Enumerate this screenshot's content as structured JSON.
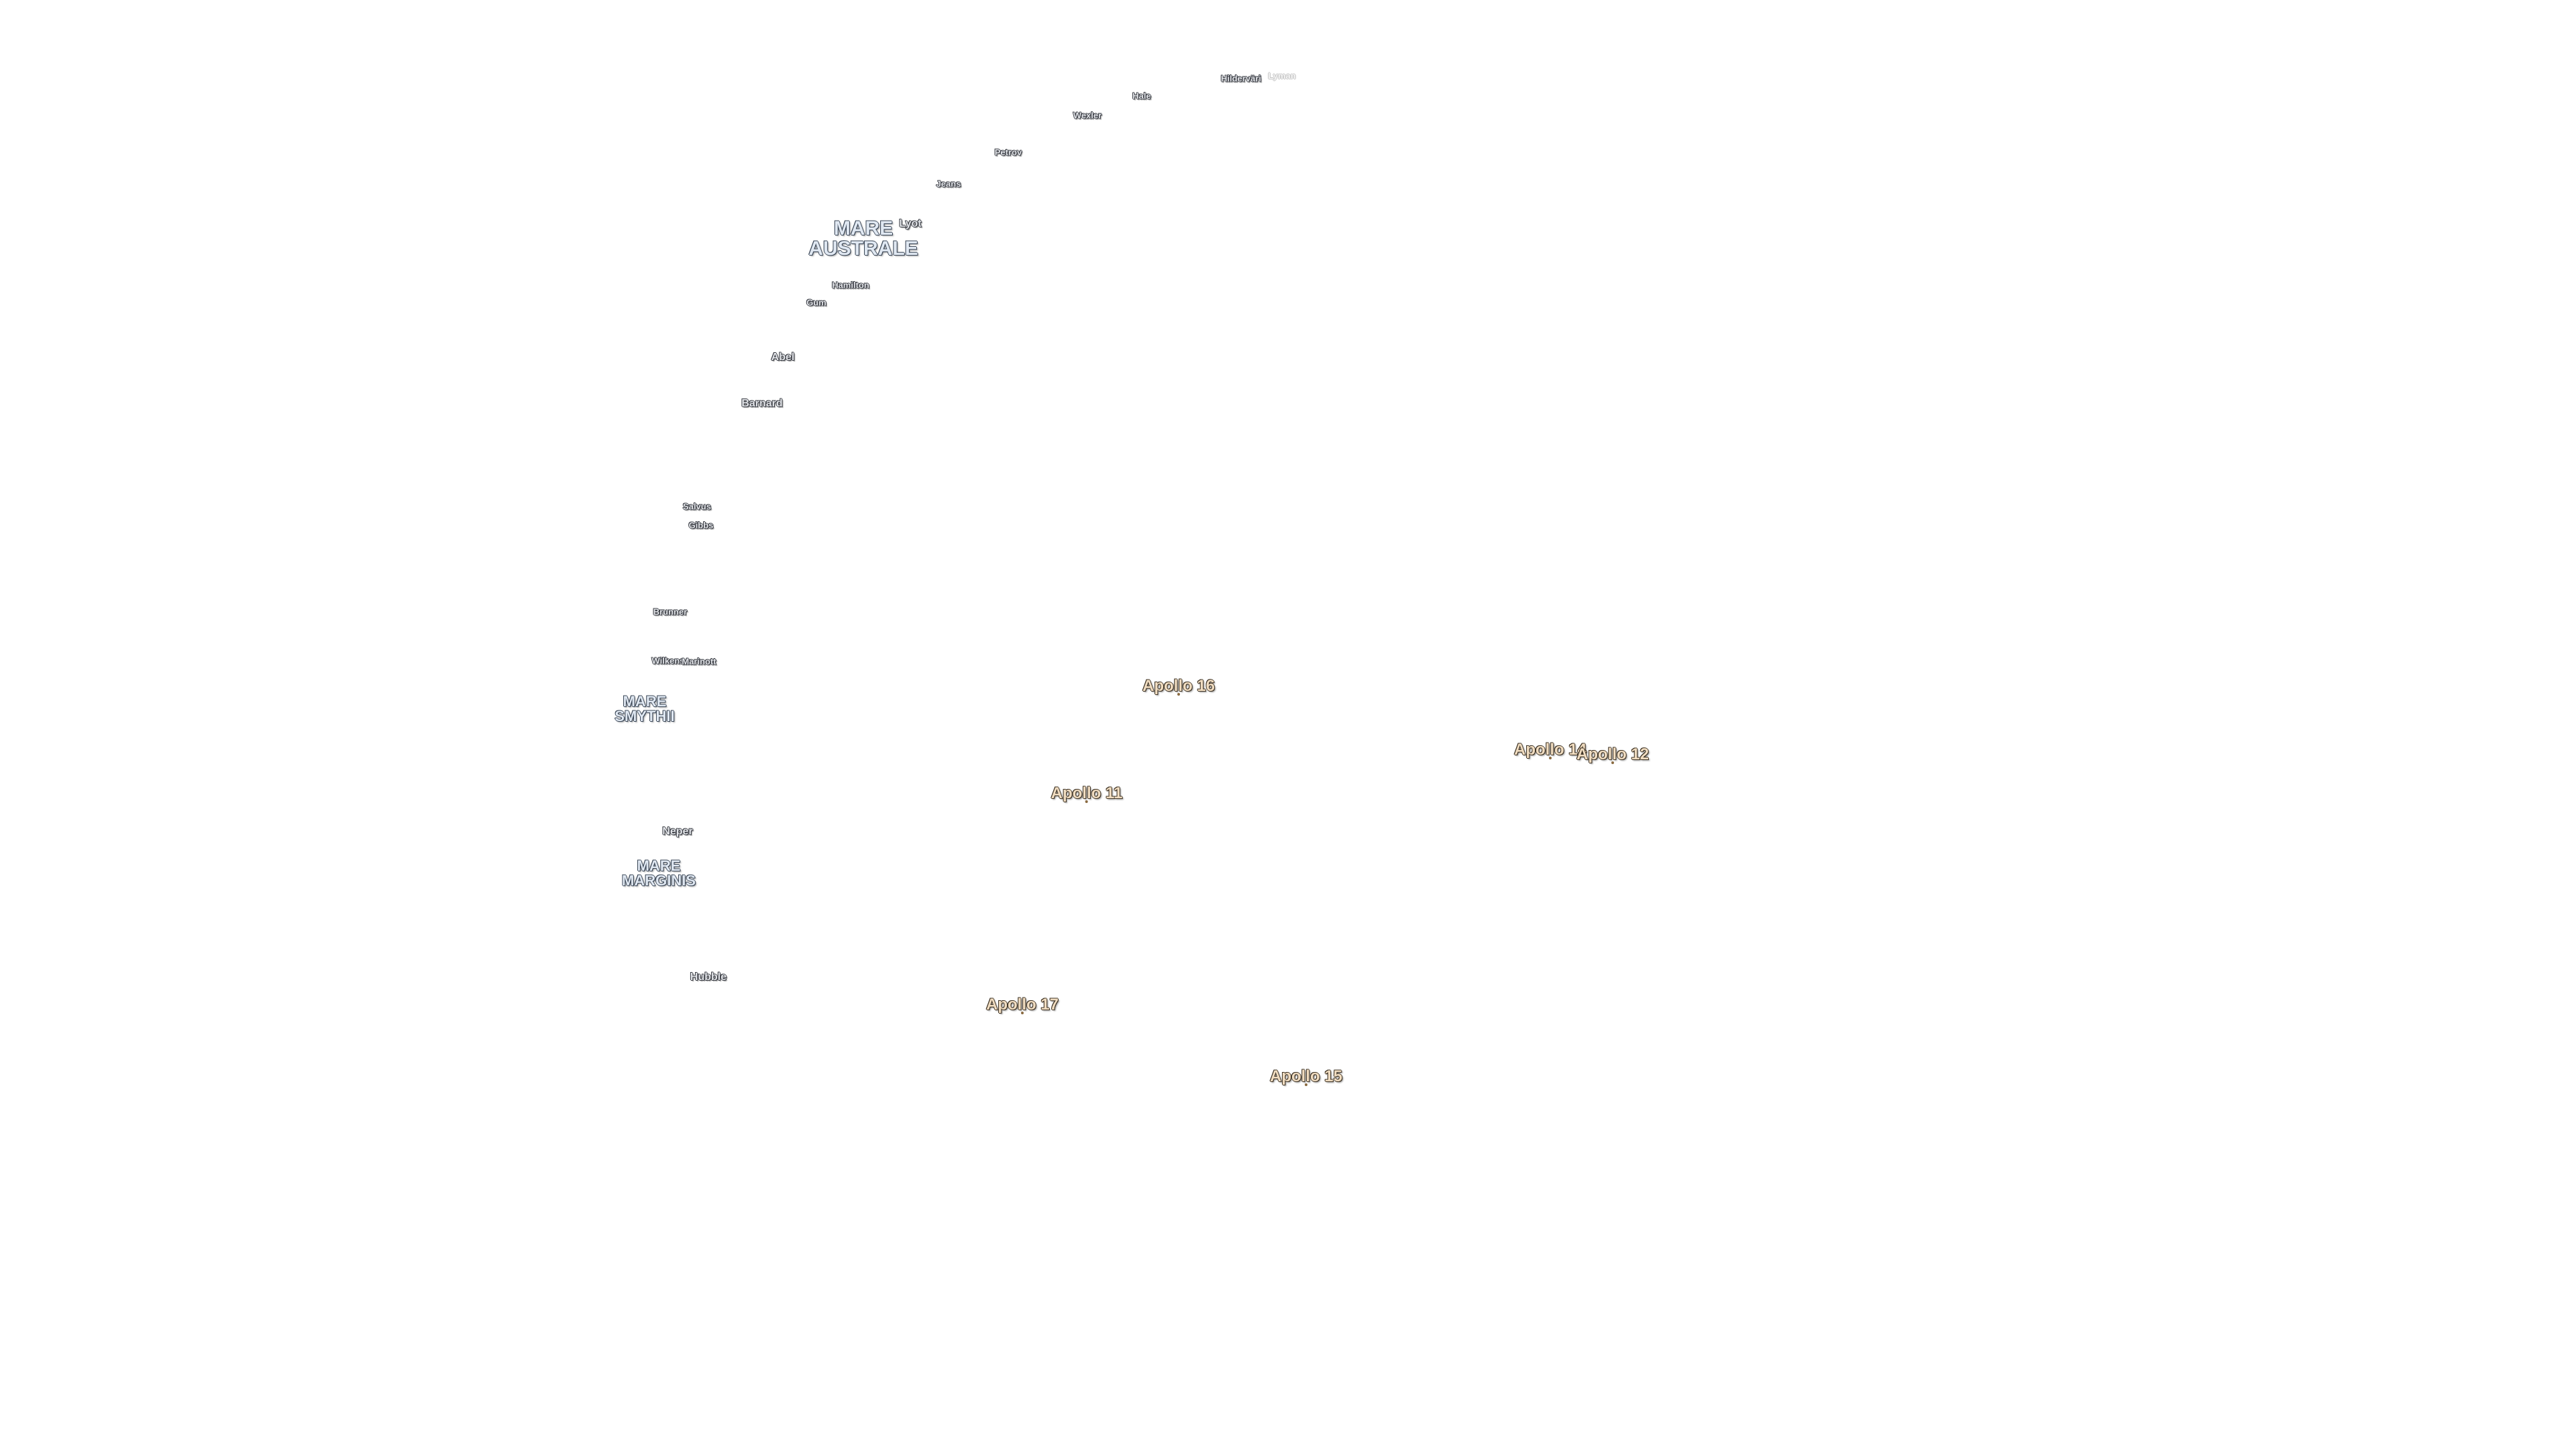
{
  "map": {
    "craters": [
      {
        "name": "Hilderväri"
      },
      {
        "name": "Lyman"
      },
      {
        "name": "Hale"
      },
      {
        "name": "Wexler"
      },
      {
        "name": "Petrov"
      },
      {
        "name": "Jeans"
      },
      {
        "name": "Lyot"
      },
      {
        "name": "Hamilton"
      },
      {
        "name": "Gum"
      },
      {
        "name": "Abel"
      },
      {
        "name": "Barnard"
      },
      {
        "name": "Salvus"
      },
      {
        "name": "Gibbs"
      },
      {
        "name": "Brunner"
      },
      {
        "name": "Wilkens"
      },
      {
        "name": "Marinott"
      },
      {
        "name": "Neper"
      },
      {
        "name": "Hubble"
      }
    ],
    "maria": [
      {
        "line1": "MARE",
        "line2": "AUSTRALE"
      },
      {
        "line1": "MARE",
        "line2": "SMYTHII"
      },
      {
        "line1": "MARE",
        "line2": "MARGINIS"
      }
    ],
    "apollo_sites": [
      {
        "name": "Apollo 16"
      },
      {
        "name": "Apollo 14"
      },
      {
        "name": "Apollo 12"
      },
      {
        "name": "Apollo 11"
      },
      {
        "name": "Apollo 17"
      },
      {
        "name": "Apollo 15"
      }
    ],
    "colors": {
      "background": "#ffffff",
      "crater_label": "#e2e4e8",
      "mare_label": "#e0e8f2",
      "apollo_label": "#f0dcc0"
    }
  }
}
